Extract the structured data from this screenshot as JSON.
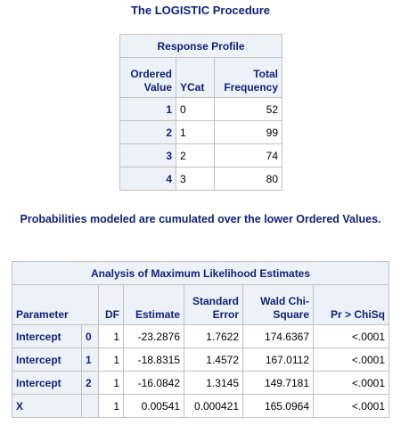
{
  "title": "The LOGISTIC Procedure",
  "response_profile": {
    "title": "Response Profile",
    "columns": [
      "Ordered Value",
      "YCat",
      "Total Frequency"
    ],
    "rows": [
      [
        1,
        "0",
        52
      ],
      [
        2,
        "1",
        99
      ],
      [
        3,
        "2",
        74
      ],
      [
        4,
        "3",
        80
      ]
    ]
  },
  "note": "Probabilities modeled are cumulated over the lower Ordered Values.",
  "estimates": {
    "title": "Analysis of Maximum Likelihood Estimates",
    "columns": [
      "Parameter",
      "DF",
      "Estimate",
      "Standard Error",
      "Wald Chi-Square",
      "Pr > ChiSq"
    ],
    "rows": [
      [
        "Intercept",
        "0",
        1,
        -23.2876,
        1.7622,
        174.6367,
        "<.0001"
      ],
      [
        "Intercept",
        "1",
        1,
        -18.8315,
        1.4572,
        167.0112,
        "<.0001"
      ],
      [
        "Intercept",
        "2",
        1,
        -16.0842,
        1.3145,
        149.7181,
        "<.0001"
      ],
      [
        "X",
        null,
        1,
        0.00541,
        0.000421,
        165.0964,
        "<.0001"
      ]
    ]
  }
}
